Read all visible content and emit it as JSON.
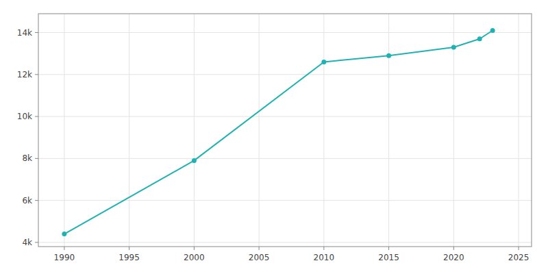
{
  "chart_data": {
    "type": "line",
    "x": [
      1990,
      2000,
      2010,
      2015,
      2020,
      2022,
      2023
    ],
    "values": [
      4400,
      7900,
      12600,
      12900,
      13300,
      13700,
      14100
    ],
    "color": "#20b2b2",
    "marker": "circle",
    "xlim": [
      1988,
      2026
    ],
    "ylim": [
      3800,
      14900
    ],
    "xticks": [
      1990,
      1995,
      2000,
      2005,
      2010,
      2015,
      2020,
      2025
    ],
    "yticks": [
      {
        "value": 4000,
        "label": "4k"
      },
      {
        "value": 6000,
        "label": "6k"
      },
      {
        "value": 8000,
        "label": "8k"
      },
      {
        "value": 10000,
        "label": "10k"
      },
      {
        "value": 12000,
        "label": "12k"
      },
      {
        "value": 14000,
        "label": "14k"
      }
    ],
    "grid": true
  }
}
